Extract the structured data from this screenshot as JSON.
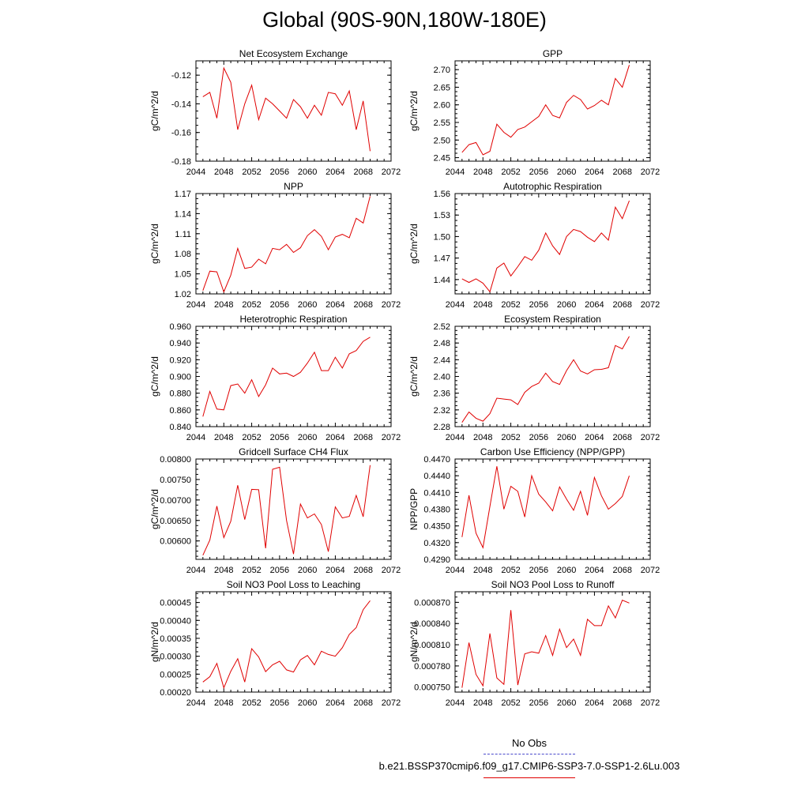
{
  "title": "Global (90S-90N,180W-180E)",
  "legend": {
    "obs_label": "No Obs",
    "case_label": "b.e21.BSSP370cmip6.f09_g17.CMIP6-SSP3-7.0-SSP1-2.6Lu.003",
    "obs_color": "#4a4acc",
    "case_color": "#e00000"
  },
  "chart_data": [
    {
      "type": "line",
      "title": "Net Ecosystem Exchange",
      "ylabel": "gC/m^2/d",
      "xlabel": "",
      "xlim": [
        2044,
        2072
      ],
      "xticks": [
        2044,
        2048,
        2052,
        2056,
        2060,
        2064,
        2068,
        2072
      ],
      "ylim": [
        -0.18,
        -0.11
      ],
      "yticks": [
        -0.18,
        -0.16,
        -0.14,
        -0.12
      ],
      "ytick_labels": [
        "-0.18",
        "-0.16",
        "-0.14",
        "-0.12"
      ],
      "x": [
        2045,
        2046,
        2047,
        2048,
        2049,
        2050,
        2051,
        2052,
        2053,
        2054,
        2055,
        2056,
        2057,
        2058,
        2059,
        2060,
        2061,
        2062,
        2063,
        2064,
        2065,
        2066,
        2067,
        2068,
        2069
      ],
      "series": [
        {
          "values": [
            -0.135,
            -0.132,
            -0.15,
            -0.115,
            -0.125,
            -0.158,
            -0.14,
            -0.127,
            -0.151,
            -0.136,
            -0.14,
            -0.145,
            -0.15,
            -0.137,
            -0.142,
            -0.15,
            -0.141,
            -0.148,
            -0.132,
            -0.133,
            -0.141,
            -0.131,
            -0.158,
            -0.138,
            -0.173
          ]
        }
      ]
    },
    {
      "type": "line",
      "title": "GPP",
      "ylabel": "gC/m^2/d",
      "xlabel": "",
      "xlim": [
        2044,
        2072
      ],
      "xticks": [
        2044,
        2048,
        2052,
        2056,
        2060,
        2064,
        2068,
        2072
      ],
      "ylim": [
        2.44,
        2.725
      ],
      "yticks": [
        2.45,
        2.5,
        2.55,
        2.6,
        2.65,
        2.7
      ],
      "ytick_labels": [
        "2.45",
        "2.50",
        "2.55",
        "2.60",
        "2.65",
        "2.70"
      ],
      "x": [
        2045,
        2046,
        2047,
        2048,
        2049,
        2050,
        2051,
        2052,
        2053,
        2054,
        2055,
        2056,
        2057,
        2058,
        2059,
        2060,
        2061,
        2062,
        2063,
        2064,
        2065,
        2066,
        2067,
        2068,
        2069
      ],
      "series": [
        {
          "values": [
            2.465,
            2.487,
            2.493,
            2.458,
            2.468,
            2.545,
            2.522,
            2.508,
            2.53,
            2.537,
            2.552,
            2.567,
            2.6,
            2.57,
            2.563,
            2.607,
            2.627,
            2.615,
            2.588,
            2.598,
            2.613,
            2.6,
            2.675,
            2.65,
            2.713
          ]
        }
      ]
    },
    {
      "type": "line",
      "title": "NPP",
      "ylabel": "gC/m^2/d",
      "xlabel": "",
      "xlim": [
        2044,
        2072
      ],
      "xticks": [
        2044,
        2048,
        2052,
        2056,
        2060,
        2064,
        2068,
        2072
      ],
      "ylim": [
        1.02,
        1.17
      ],
      "yticks": [
        1.02,
        1.05,
        1.08,
        1.11,
        1.14,
        1.17
      ],
      "ytick_labels": [
        "1.02",
        "1.05",
        "1.08",
        "1.11",
        "1.14",
        "1.17"
      ],
      "x": [
        2045,
        2046,
        2047,
        2048,
        2049,
        2050,
        2051,
        2052,
        2053,
        2054,
        2055,
        2056,
        2057,
        2058,
        2059,
        2060,
        2061,
        2062,
        2063,
        2064,
        2065,
        2066,
        2067,
        2068,
        2069
      ],
      "series": [
        {
          "values": [
            1.025,
            1.054,
            1.053,
            1.023,
            1.048,
            1.088,
            1.058,
            1.06,
            1.072,
            1.065,
            1.088,
            1.086,
            1.094,
            1.082,
            1.089,
            1.107,
            1.116,
            1.106,
            1.086,
            1.105,
            1.109,
            1.104,
            1.133,
            1.126,
            1.166
          ]
        }
      ]
    },
    {
      "type": "line",
      "title": "Autotrophic Respiration",
      "ylabel": "gC/m^2/d",
      "xlabel": "",
      "xlim": [
        2044,
        2072
      ],
      "xticks": [
        2044,
        2048,
        2052,
        2056,
        2060,
        2064,
        2068,
        2072
      ],
      "ylim": [
        1.42,
        1.56
      ],
      "yticks": [
        1.44,
        1.47,
        1.5,
        1.53,
        1.56
      ],
      "ytick_labels": [
        "1.44",
        "1.47",
        "1.50",
        "1.53",
        "1.56"
      ],
      "x": [
        2045,
        2046,
        2047,
        2048,
        2049,
        2050,
        2051,
        2052,
        2053,
        2054,
        2055,
        2056,
        2057,
        2058,
        2059,
        2060,
        2061,
        2062,
        2063,
        2064,
        2065,
        2066,
        2067,
        2068,
        2069
      ],
      "series": [
        {
          "values": [
            1.441,
            1.436,
            1.441,
            1.435,
            1.423,
            1.456,
            1.463,
            1.445,
            1.458,
            1.472,
            1.467,
            1.481,
            1.505,
            1.487,
            1.475,
            1.5,
            1.51,
            1.507,
            1.499,
            1.493,
            1.505,
            1.495,
            1.541,
            1.525,
            1.55
          ]
        }
      ]
    },
    {
      "type": "line",
      "title": "Heterotrophic Respiration",
      "ylabel": "gC/m^2/d",
      "xlabel": "",
      "xlim": [
        2044,
        2072
      ],
      "xticks": [
        2044,
        2048,
        2052,
        2056,
        2060,
        2064,
        2068,
        2072
      ],
      "ylim": [
        0.84,
        0.96
      ],
      "yticks": [
        0.84,
        0.86,
        0.88,
        0.9,
        0.92,
        0.94,
        0.96
      ],
      "ytick_labels": [
        "0.840",
        "0.860",
        "0.880",
        "0.900",
        "0.920",
        "0.940",
        "0.960"
      ],
      "x": [
        2045,
        2046,
        2047,
        2048,
        2049,
        2050,
        2051,
        2052,
        2053,
        2054,
        2055,
        2056,
        2057,
        2058,
        2059,
        2060,
        2061,
        2062,
        2063,
        2064,
        2065,
        2066,
        2067,
        2068,
        2069
      ],
      "series": [
        {
          "values": [
            0.852,
            0.882,
            0.861,
            0.86,
            0.889,
            0.891,
            0.88,
            0.896,
            0.876,
            0.89,
            0.91,
            0.903,
            0.904,
            0.9,
            0.905,
            0.916,
            0.929,
            0.907,
            0.907,
            0.923,
            0.91,
            0.927,
            0.931,
            0.942,
            0.947
          ]
        }
      ]
    },
    {
      "type": "line",
      "title": "Ecosystem Respiration",
      "ylabel": "gC/m^2/d",
      "xlabel": "",
      "xlim": [
        2044,
        2072
      ],
      "xticks": [
        2044,
        2048,
        2052,
        2056,
        2060,
        2064,
        2068,
        2072
      ],
      "ylim": [
        2.28,
        2.52
      ],
      "yticks": [
        2.28,
        2.32,
        2.36,
        2.4,
        2.44,
        2.48,
        2.52
      ],
      "ytick_labels": [
        "2.28",
        "2.32",
        "2.36",
        "2.40",
        "2.44",
        "2.48",
        "2.52"
      ],
      "x": [
        2045,
        2046,
        2047,
        2048,
        2049,
        2050,
        2051,
        2052,
        2053,
        2054,
        2055,
        2056,
        2057,
        2058,
        2059,
        2060,
        2061,
        2062,
        2063,
        2064,
        2065,
        2066,
        2067,
        2068,
        2069
      ],
      "series": [
        {
          "values": [
            2.29,
            2.315,
            2.3,
            2.293,
            2.311,
            2.348,
            2.346,
            2.344,
            2.333,
            2.362,
            2.376,
            2.384,
            2.408,
            2.388,
            2.381,
            2.414,
            2.44,
            2.413,
            2.406,
            2.416,
            2.417,
            2.421,
            2.474,
            2.466,
            2.496
          ]
        }
      ]
    },
    {
      "type": "line",
      "title": "Gridcell Surface CH4 Flux",
      "ylabel": "gC/m^2/d",
      "xlabel": "",
      "xlim": [
        2044,
        2072
      ],
      "xticks": [
        2044,
        2048,
        2052,
        2056,
        2060,
        2064,
        2068,
        2072
      ],
      "ylim": [
        0.00555,
        0.008
      ],
      "yticks": [
        0.006,
        0.0065,
        0.007,
        0.0075,
        0.008
      ],
      "ytick_labels": [
        "0.00600",
        "0.00650",
        "0.00700",
        "0.00750",
        "0.00800"
      ],
      "x": [
        2045,
        2046,
        2047,
        2048,
        2049,
        2050,
        2051,
        2052,
        2053,
        2054,
        2055,
        2056,
        2057,
        2058,
        2059,
        2060,
        2061,
        2062,
        2063,
        2064,
        2065,
        2066,
        2067,
        2068,
        2069
      ],
      "series": [
        {
          "values": [
            0.00565,
            0.00602,
            0.00685,
            0.00608,
            0.00648,
            0.00736,
            0.00652,
            0.00726,
            0.00725,
            0.00582,
            0.00775,
            0.0078,
            0.0065,
            0.00568,
            0.0069,
            0.00656,
            0.00666,
            0.0064,
            0.00574,
            0.00683,
            0.00656,
            0.0066,
            0.00711,
            0.00659,
            0.00785
          ]
        }
      ]
    },
    {
      "type": "line",
      "title": "Carbon Use Efficiency (NPP/GPP)",
      "ylabel": "NPP/GPP",
      "xlabel": "",
      "xlim": [
        2044,
        2072
      ],
      "xticks": [
        2044,
        2048,
        2052,
        2056,
        2060,
        2064,
        2068,
        2072
      ],
      "ylim": [
        0.429,
        0.447
      ],
      "yticks": [
        0.429,
        0.432,
        0.435,
        0.438,
        0.441,
        0.444,
        0.447
      ],
      "ytick_labels": [
        "0.4290",
        "0.4320",
        "0.4350",
        "0.4380",
        "0.4410",
        "0.4440",
        "0.4470"
      ],
      "x": [
        2045,
        2046,
        2047,
        2048,
        2049,
        2050,
        2051,
        2052,
        2053,
        2054,
        2055,
        2056,
        2057,
        2058,
        2059,
        2060,
        2061,
        2062,
        2063,
        2064,
        2065,
        2066,
        2067,
        2068,
        2069
      ],
      "series": [
        {
          "values": [
            0.433,
            0.4405,
            0.4337,
            0.4311,
            0.4385,
            0.4457,
            0.438,
            0.4421,
            0.4412,
            0.4366,
            0.444,
            0.4407,
            0.4393,
            0.4377,
            0.442,
            0.4398,
            0.4378,
            0.4412,
            0.4369,
            0.4437,
            0.4404,
            0.438,
            0.439,
            0.4403,
            0.444
          ]
        }
      ]
    },
    {
      "type": "line",
      "title": "Soil NO3 Pool Loss to Leaching",
      "ylabel": "gN/m^2/d",
      "xlabel": "",
      "xlim": [
        2044,
        2072
      ],
      "xticks": [
        2044,
        2048,
        2052,
        2056,
        2060,
        2064,
        2068,
        2072
      ],
      "ylim": [
        0.0002,
        0.00048
      ],
      "yticks": [
        0.0002,
        0.00025,
        0.0003,
        0.00035,
        0.0004,
        0.00045
      ],
      "ytick_labels": [
        "0.00020",
        "0.00025",
        "0.00030",
        "0.00035",
        "0.00040",
        "0.00045"
      ],
      "x": [
        2045,
        2046,
        2047,
        2048,
        2049,
        2050,
        2051,
        2052,
        2053,
        2054,
        2055,
        2056,
        2057,
        2058,
        2059,
        2060,
        2061,
        2062,
        2063,
        2064,
        2065,
        2066,
        2067,
        2068,
        2069
      ],
      "series": [
        {
          "values": [
            0.000228,
            0.000243,
            0.00028,
            0.000212,
            0.000258,
            0.000293,
            0.000228,
            0.000321,
            0.000298,
            0.000257,
            0.000276,
            0.000286,
            0.000262,
            0.000256,
            0.00029,
            0.000302,
            0.000276,
            0.000314,
            0.000305,
            0.0003,
            0.000324,
            0.000361,
            0.00038,
            0.00043,
            0.000455
          ]
        }
      ]
    },
    {
      "type": "line",
      "title": "Soil NO3 Pool Loss to Runoff",
      "ylabel": "gN/m^2/d",
      "xlabel": "",
      "xlim": [
        2044,
        2072
      ],
      "xticks": [
        2044,
        2048,
        2052,
        2056,
        2060,
        2064,
        2068,
        2072
      ],
      "ylim": [
        0.000743,
        0.000885
      ],
      "yticks": [
        0.00075,
        0.00078,
        0.00081,
        0.00084,
        0.00087
      ],
      "ytick_labels": [
        "0.000750",
        "0.000780",
        "0.000810",
        "0.000840",
        "0.000870"
      ],
      "x": [
        2045,
        2046,
        2047,
        2048,
        2049,
        2050,
        2051,
        2052,
        2053,
        2054,
        2055,
        2056,
        2057,
        2058,
        2059,
        2060,
        2061,
        2062,
        2063,
        2064,
        2065,
        2066,
        2067,
        2068,
        2069
      ],
      "series": [
        {
          "values": [
            0.000749,
            0.000813,
            0.000768,
            0.000752,
            0.000826,
            0.000763,
            0.000754,
            0.000859,
            0.000753,
            0.000797,
            0.0008,
            0.000798,
            0.000823,
            0.000795,
            0.000832,
            0.000806,
            0.000818,
            0.000795,
            0.000846,
            0.000837,
            0.000837,
            0.000865,
            0.000848,
            0.000873,
            0.000869
          ]
        }
      ]
    }
  ]
}
